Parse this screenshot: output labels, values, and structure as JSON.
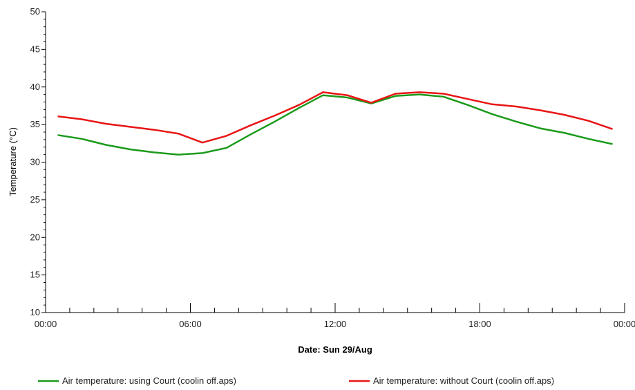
{
  "chart_data": {
    "type": "line",
    "xlabel": "Date: Sun 29/Aug",
    "ylabel": "Temperature (°C)",
    "ylim": [
      10,
      50
    ],
    "xlim": [
      0,
      24
    ],
    "x_ticks": [
      0,
      6,
      12,
      18,
      24
    ],
    "x_tick_labels": [
      "00:00",
      "06:00",
      "12:00",
      "18:00",
      "00:00"
    ],
    "y_ticks": [
      10,
      15,
      20,
      25,
      30,
      35,
      40,
      45,
      50
    ],
    "y_tick_labels": [
      "10",
      "15",
      "20",
      "25",
      "30",
      "35",
      "40",
      "45",
      "50"
    ],
    "grid": false,
    "legend_position": "bottom",
    "x": [
      0.5,
      1.5,
      2.5,
      3.5,
      4.5,
      5.5,
      6.5,
      7.5,
      8.5,
      9.5,
      10.5,
      11.5,
      12.5,
      13.5,
      14.5,
      15.5,
      16.5,
      17.5,
      18.5,
      19.5,
      20.5,
      21.5,
      22.5,
      23.5
    ],
    "series": [
      {
        "name": "Air temperature: using Court (coolin off.aps)",
        "color": "#1a9a1a",
        "values": [
          33.6,
          33.1,
          32.3,
          31.7,
          31.3,
          31.0,
          31.2,
          31.9,
          33.7,
          35.4,
          37.2,
          38.9,
          38.6,
          37.8,
          38.8,
          39.0,
          38.7,
          37.6,
          36.4,
          35.4,
          34.5,
          33.9,
          33.1,
          32.4
        ]
      },
      {
        "name": "Air temperature: without Court (coolin off.aps)",
        "color": "#e81414",
        "values": [
          36.1,
          35.7,
          35.1,
          34.7,
          34.3,
          33.8,
          32.6,
          33.5,
          34.9,
          36.2,
          37.6,
          39.3,
          38.9,
          37.9,
          39.1,
          39.3,
          39.1,
          38.4,
          37.7,
          37.4,
          36.9,
          36.3,
          35.5,
          34.4
        ]
      }
    ]
  }
}
